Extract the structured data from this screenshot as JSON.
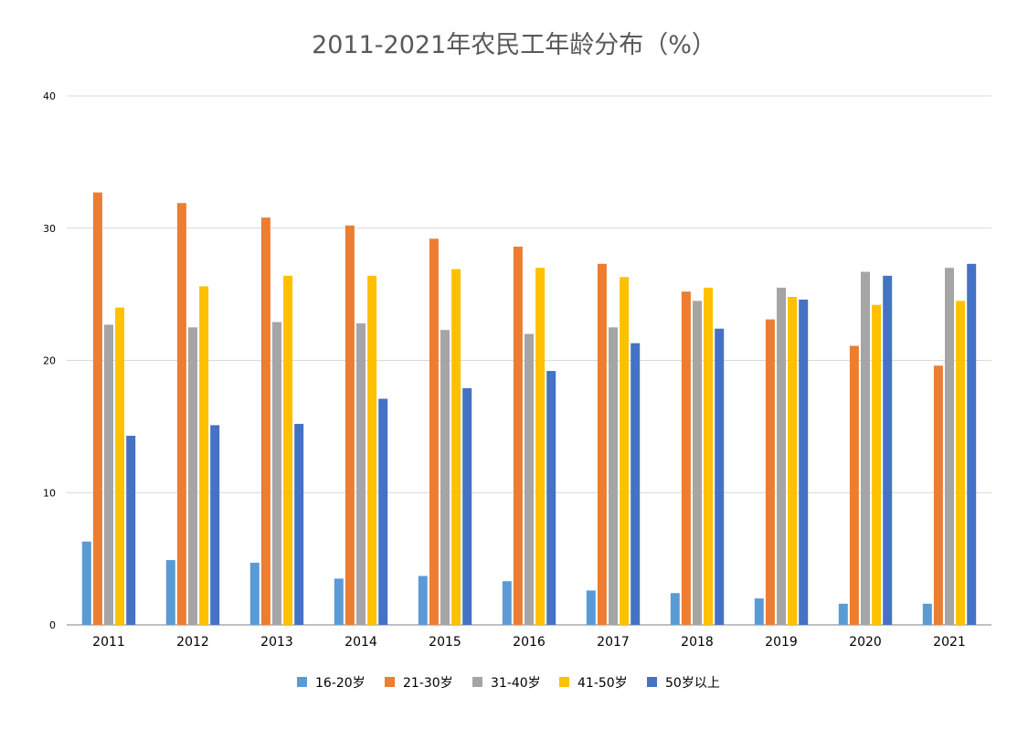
{
  "chart_data": {
    "type": "bar",
    "title": "2011-2021年农民工年龄分布（%）",
    "xlabel": "",
    "ylabel": "",
    "categories": [
      "2011",
      "2012",
      "2013",
      "2014",
      "2015",
      "2016",
      "2017",
      "2018",
      "2019",
      "2020",
      "2021"
    ],
    "ylim": [
      0,
      40
    ],
    "yticks": [
      "0",
      "10",
      "20",
      "30",
      "40"
    ],
    "grid": true,
    "legend_position": "bottom",
    "series": [
      {
        "name": "16-20岁",
        "color": "#5B9BD5",
        "values": [
          6.3,
          4.9,
          4.7,
          3.5,
          3.7,
          3.3,
          2.6,
          2.4,
          2.0,
          1.6,
          1.6
        ]
      },
      {
        "name": "21-30岁",
        "color": "#ED7D31",
        "values": [
          32.7,
          31.9,
          30.8,
          30.2,
          29.2,
          28.6,
          27.3,
          25.2,
          23.1,
          21.1,
          19.6
        ]
      },
      {
        "name": "31-40岁",
        "color": "#A5A5A5",
        "values": [
          22.7,
          22.5,
          22.9,
          22.8,
          22.3,
          22.0,
          22.5,
          24.5,
          25.5,
          26.7,
          27.0
        ]
      },
      {
        "name": "41-50岁",
        "color": "#FFC000",
        "values": [
          24.0,
          25.6,
          26.4,
          26.4,
          26.9,
          27.0,
          26.3,
          25.5,
          24.8,
          24.2,
          24.5
        ]
      },
      {
        "name": "50岁以上",
        "color": "#4472C4",
        "values": [
          14.3,
          15.1,
          15.2,
          17.1,
          17.9,
          19.2,
          21.3,
          22.4,
          24.6,
          26.4,
          27.3
        ]
      }
    ]
  }
}
